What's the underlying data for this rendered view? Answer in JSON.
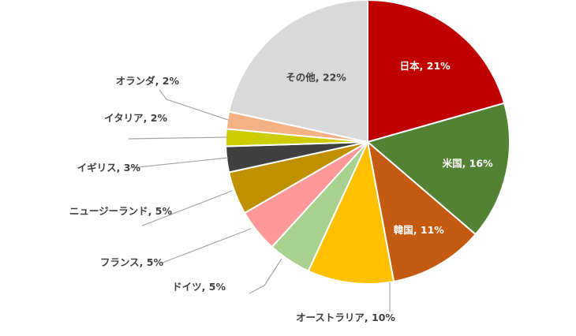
{
  "chart_data": {
    "type": "pie",
    "title": "",
    "legend": "none",
    "start_angle_deg": 0,
    "direction": "clockwise",
    "slices": [
      {
        "label": "日本, 21%",
        "name": "日本",
        "value": 21,
        "color": "#C00000",
        "text_color": "#FFFFFF",
        "placement": "inside"
      },
      {
        "label": "米国, 16%",
        "name": "米国",
        "value": 16,
        "color": "#548235",
        "text_color": "#FFFFFF",
        "placement": "inside"
      },
      {
        "label": "韓国, 11%",
        "name": "韓国",
        "value": 11,
        "color": "#C55A11",
        "text_color": "#FFFFFF",
        "placement": "inside"
      },
      {
        "label": "オーストラリア, 10%",
        "name": "オーストラリア",
        "value": 10,
        "color": "#FFC000",
        "text_color": "#404040",
        "placement": "outside"
      },
      {
        "label": "ドイツ, 5%",
        "name": "ドイツ",
        "value": 5,
        "color": "#A9D18E",
        "text_color": "#404040",
        "placement": "outside"
      },
      {
        "label": "フランス, 5%",
        "name": "フランス",
        "value": 5,
        "color": "#FF9999",
        "text_color": "#404040",
        "placement": "outside"
      },
      {
        "label": "ニュージーランド, 5%",
        "name": "ニュージーランド",
        "value": 5,
        "color": "#BF9000",
        "text_color": "#404040",
        "placement": "outside"
      },
      {
        "label": "イギリス, 3%",
        "name": "イギリス",
        "value": 3,
        "color": "#404040",
        "text_color": "#404040",
        "placement": "outside"
      },
      {
        "label": "イタリア, 2%",
        "name": "イタリア",
        "value": 2,
        "color": "#CCCC00",
        "text_color": "#404040",
        "placement": "outside"
      },
      {
        "label": "オランダ, 2%",
        "name": "オランダ",
        "value": 2,
        "color": "#F4B183",
        "text_color": "#404040",
        "placement": "outside"
      },
      {
        "label": "その他, 22%",
        "name": "その他",
        "value": 22,
        "color": "#D9D9D9",
        "text_color": "#404040",
        "placement": "inside"
      }
    ]
  }
}
